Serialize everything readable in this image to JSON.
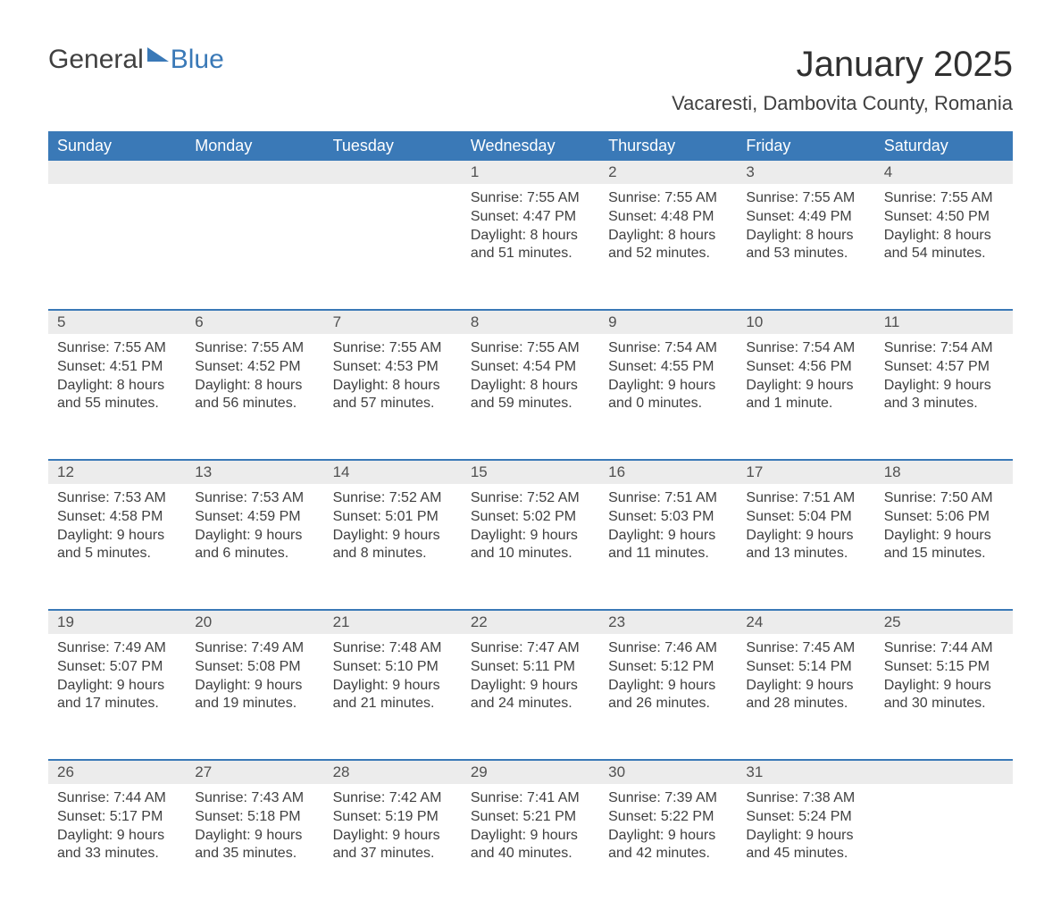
{
  "logo": {
    "text1": "General",
    "text2": "Blue"
  },
  "title": "January 2025",
  "location": "Vacaresti, Dambovita County, Romania",
  "colors": {
    "header_bg": "#3a79b7",
    "header_text": "#ffffff",
    "daynum_bg": "#ececec",
    "body_text": "#404040"
  },
  "weekdays": [
    "Sunday",
    "Monday",
    "Tuesday",
    "Wednesday",
    "Thursday",
    "Friday",
    "Saturday"
  ],
  "weeks": [
    [
      null,
      null,
      null,
      {
        "n": "1",
        "sr": "Sunrise: 7:55 AM",
        "ss": "Sunset: 4:47 PM",
        "d1": "Daylight: 8 hours",
        "d2": "and 51 minutes."
      },
      {
        "n": "2",
        "sr": "Sunrise: 7:55 AM",
        "ss": "Sunset: 4:48 PM",
        "d1": "Daylight: 8 hours",
        "d2": "and 52 minutes."
      },
      {
        "n": "3",
        "sr": "Sunrise: 7:55 AM",
        "ss": "Sunset: 4:49 PM",
        "d1": "Daylight: 8 hours",
        "d2": "and 53 minutes."
      },
      {
        "n": "4",
        "sr": "Sunrise: 7:55 AM",
        "ss": "Sunset: 4:50 PM",
        "d1": "Daylight: 8 hours",
        "d2": "and 54 minutes."
      }
    ],
    [
      {
        "n": "5",
        "sr": "Sunrise: 7:55 AM",
        "ss": "Sunset: 4:51 PM",
        "d1": "Daylight: 8 hours",
        "d2": "and 55 minutes."
      },
      {
        "n": "6",
        "sr": "Sunrise: 7:55 AM",
        "ss": "Sunset: 4:52 PM",
        "d1": "Daylight: 8 hours",
        "d2": "and 56 minutes."
      },
      {
        "n": "7",
        "sr": "Sunrise: 7:55 AM",
        "ss": "Sunset: 4:53 PM",
        "d1": "Daylight: 8 hours",
        "d2": "and 57 minutes."
      },
      {
        "n": "8",
        "sr": "Sunrise: 7:55 AM",
        "ss": "Sunset: 4:54 PM",
        "d1": "Daylight: 8 hours",
        "d2": "and 59 minutes."
      },
      {
        "n": "9",
        "sr": "Sunrise: 7:54 AM",
        "ss": "Sunset: 4:55 PM",
        "d1": "Daylight: 9 hours",
        "d2": "and 0 minutes."
      },
      {
        "n": "10",
        "sr": "Sunrise: 7:54 AM",
        "ss": "Sunset: 4:56 PM",
        "d1": "Daylight: 9 hours",
        "d2": "and 1 minute."
      },
      {
        "n": "11",
        "sr": "Sunrise: 7:54 AM",
        "ss": "Sunset: 4:57 PM",
        "d1": "Daylight: 9 hours",
        "d2": "and 3 minutes."
      }
    ],
    [
      {
        "n": "12",
        "sr": "Sunrise: 7:53 AM",
        "ss": "Sunset: 4:58 PM",
        "d1": "Daylight: 9 hours",
        "d2": "and 5 minutes."
      },
      {
        "n": "13",
        "sr": "Sunrise: 7:53 AM",
        "ss": "Sunset: 4:59 PM",
        "d1": "Daylight: 9 hours",
        "d2": "and 6 minutes."
      },
      {
        "n": "14",
        "sr": "Sunrise: 7:52 AM",
        "ss": "Sunset: 5:01 PM",
        "d1": "Daylight: 9 hours",
        "d2": "and 8 minutes."
      },
      {
        "n": "15",
        "sr": "Sunrise: 7:52 AM",
        "ss": "Sunset: 5:02 PM",
        "d1": "Daylight: 9 hours",
        "d2": "and 10 minutes."
      },
      {
        "n": "16",
        "sr": "Sunrise: 7:51 AM",
        "ss": "Sunset: 5:03 PM",
        "d1": "Daylight: 9 hours",
        "d2": "and 11 minutes."
      },
      {
        "n": "17",
        "sr": "Sunrise: 7:51 AM",
        "ss": "Sunset: 5:04 PM",
        "d1": "Daylight: 9 hours",
        "d2": "and 13 minutes."
      },
      {
        "n": "18",
        "sr": "Sunrise: 7:50 AM",
        "ss": "Sunset: 5:06 PM",
        "d1": "Daylight: 9 hours",
        "d2": "and 15 minutes."
      }
    ],
    [
      {
        "n": "19",
        "sr": "Sunrise: 7:49 AM",
        "ss": "Sunset: 5:07 PM",
        "d1": "Daylight: 9 hours",
        "d2": "and 17 minutes."
      },
      {
        "n": "20",
        "sr": "Sunrise: 7:49 AM",
        "ss": "Sunset: 5:08 PM",
        "d1": "Daylight: 9 hours",
        "d2": "and 19 minutes."
      },
      {
        "n": "21",
        "sr": "Sunrise: 7:48 AM",
        "ss": "Sunset: 5:10 PM",
        "d1": "Daylight: 9 hours",
        "d2": "and 21 minutes."
      },
      {
        "n": "22",
        "sr": "Sunrise: 7:47 AM",
        "ss": "Sunset: 5:11 PM",
        "d1": "Daylight: 9 hours",
        "d2": "and 24 minutes."
      },
      {
        "n": "23",
        "sr": "Sunrise: 7:46 AM",
        "ss": "Sunset: 5:12 PM",
        "d1": "Daylight: 9 hours",
        "d2": "and 26 minutes."
      },
      {
        "n": "24",
        "sr": "Sunrise: 7:45 AM",
        "ss": "Sunset: 5:14 PM",
        "d1": "Daylight: 9 hours",
        "d2": "and 28 minutes."
      },
      {
        "n": "25",
        "sr": "Sunrise: 7:44 AM",
        "ss": "Sunset: 5:15 PM",
        "d1": "Daylight: 9 hours",
        "d2": "and 30 minutes."
      }
    ],
    [
      {
        "n": "26",
        "sr": "Sunrise: 7:44 AM",
        "ss": "Sunset: 5:17 PM",
        "d1": "Daylight: 9 hours",
        "d2": "and 33 minutes."
      },
      {
        "n": "27",
        "sr": "Sunrise: 7:43 AM",
        "ss": "Sunset: 5:18 PM",
        "d1": "Daylight: 9 hours",
        "d2": "and 35 minutes."
      },
      {
        "n": "28",
        "sr": "Sunrise: 7:42 AM",
        "ss": "Sunset: 5:19 PM",
        "d1": "Daylight: 9 hours",
        "d2": "and 37 minutes."
      },
      {
        "n": "29",
        "sr": "Sunrise: 7:41 AM",
        "ss": "Sunset: 5:21 PM",
        "d1": "Daylight: 9 hours",
        "d2": "and 40 minutes."
      },
      {
        "n": "30",
        "sr": "Sunrise: 7:39 AM",
        "ss": "Sunset: 5:22 PM",
        "d1": "Daylight: 9 hours",
        "d2": "and 42 minutes."
      },
      {
        "n": "31",
        "sr": "Sunrise: 7:38 AM",
        "ss": "Sunset: 5:24 PM",
        "d1": "Daylight: 9 hours",
        "d2": "and 45 minutes."
      },
      null
    ]
  ]
}
